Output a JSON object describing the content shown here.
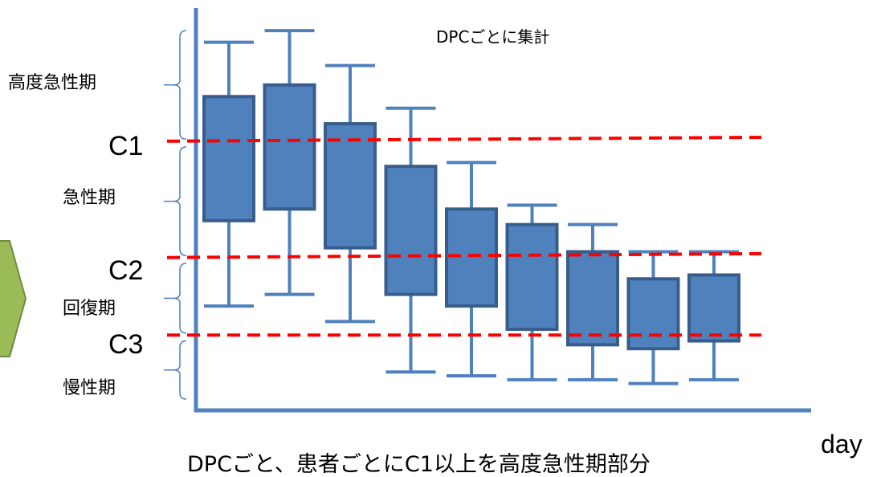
{
  "chart_data": {
    "type": "box",
    "title": "DPCごとに集計",
    "xlabel": "day",
    "ylabel": "",
    "ylim": [
      0,
      100
    ],
    "grid": false,
    "boxes": [
      {
        "min": 24,
        "q1": 46,
        "q3": 78,
        "max": 92
      },
      {
        "min": 27,
        "q1": 49,
        "q3": 81,
        "max": 95
      },
      {
        "min": 20,
        "q1": 39,
        "q3": 71,
        "max": 86
      },
      {
        "min": 7,
        "q1": 27,
        "q3": 60,
        "max": 75
      },
      {
        "min": 6,
        "q1": 24,
        "q3": 49,
        "max": 61
      },
      {
        "min": 5,
        "q1": 18,
        "q3": 45,
        "max": 50
      },
      {
        "min": 5,
        "q1": 14,
        "q3": 38,
        "max": 45
      },
      {
        "min": 4,
        "q1": 13,
        "q3": 31,
        "max": 38
      },
      {
        "min": 5,
        "q1": 15,
        "q3": 32,
        "max": 38
      }
    ],
    "thresholds": [
      {
        "name": "C1",
        "y_start": 66.5,
        "y_end": 67.5
      },
      {
        "name": "C2",
        "y_start": 36.5,
        "y_end": 37.5
      },
      {
        "name": "C3",
        "y_start": 16.5,
        "y_end": 16.5
      }
    ],
    "bands": [
      {
        "label": "高度急性期",
        "from": 67,
        "to": 95
      },
      {
        "label": "急性期",
        "from": 37,
        "to": 65
      },
      {
        "label": "回復期",
        "from": 17,
        "to": 35
      },
      {
        "label": "慢性期",
        "from": 0,
        "to": 15
      }
    ],
    "caption": "DPCごと、患者ごとにC1以上を高度急性期部分"
  },
  "colors": {
    "box_fill": "#4f81bd",
    "box_stroke": "#385d8a",
    "whisker": "#4f81bd",
    "threshold": "#ff0000",
    "axis": "#4f81bd",
    "arrow_fill": "#9bbb59",
    "arrow_stroke": "#71893f",
    "brace": "#4f81bd"
  }
}
